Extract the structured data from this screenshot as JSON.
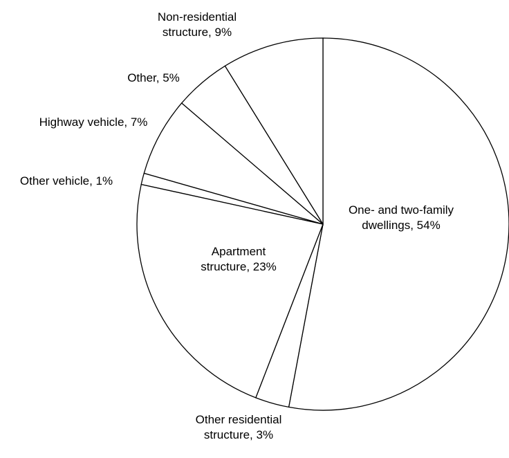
{
  "chart_data": {
    "type": "pie",
    "labels": [
      "One- and two-family dwellings, 54%",
      "Other residential structure, 3%",
      "Apartment structure, 23%",
      "Other vehicle, 1%",
      "Highway vehicle, 7%",
      "Other, 5%",
      "Non-residential structure, 9%"
    ],
    "values": [
      54,
      3,
      23,
      1,
      7,
      5,
      9
    ],
    "color": "#ffffff",
    "edgecolor": "#000000"
  }
}
